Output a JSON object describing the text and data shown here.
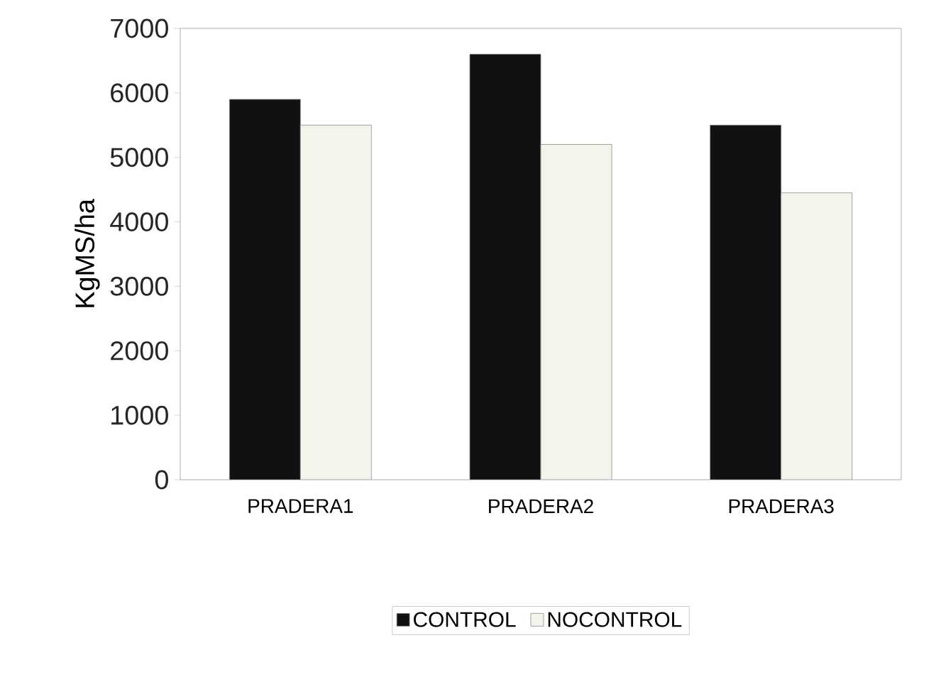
{
  "chart_data": {
    "type": "bar",
    "ylabel": "KgMS/ha",
    "categories": [
      "PRADERA1",
      "PRADERA2",
      "PRADERA3"
    ],
    "series": [
      {
        "name": "CONTROL",
        "color": "#111111",
        "values": [
          5900,
          6600,
          5500
        ]
      },
      {
        "name": "NOCONTROL",
        "color": "#f4f4ec",
        "values": [
          5500,
          5200,
          4450
        ]
      }
    ],
    "ylim": [
      0,
      7000
    ],
    "yticks": [
      0,
      1000,
      2000,
      3000,
      4000,
      5000,
      6000,
      7000
    ],
    "grid": false,
    "legend": "bottom"
  }
}
